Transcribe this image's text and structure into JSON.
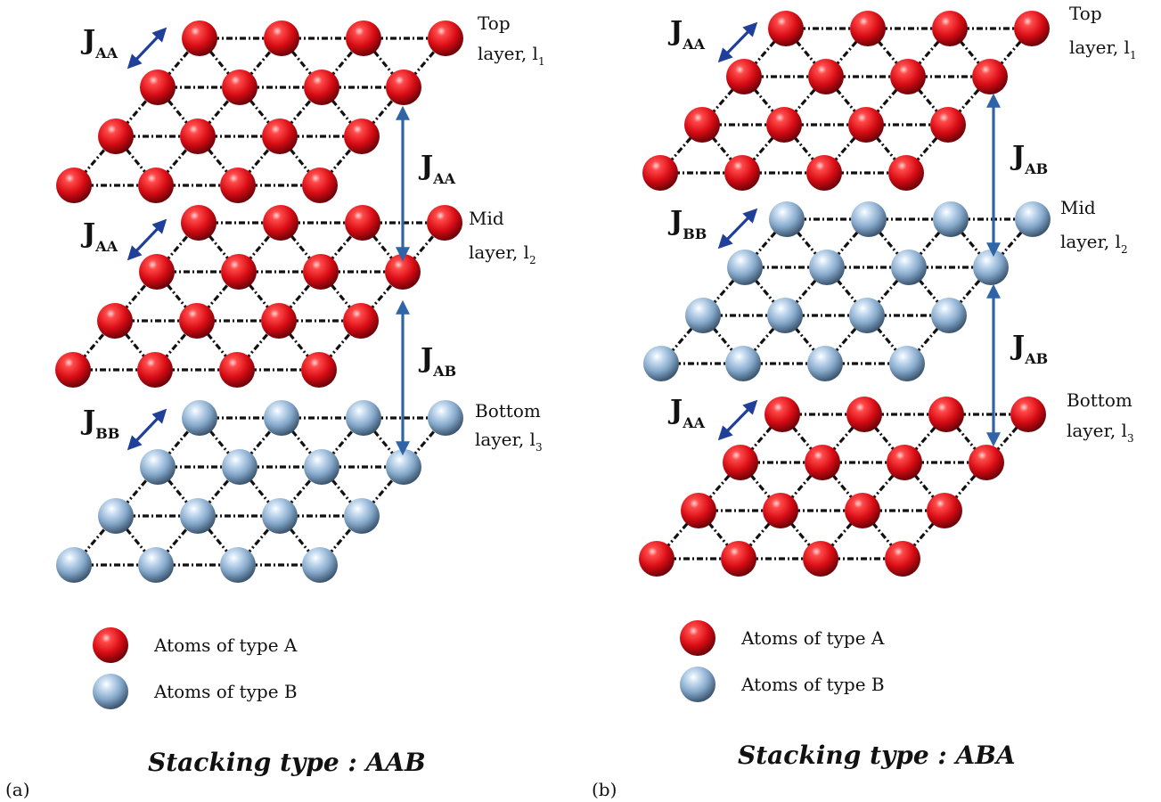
{
  "colors": {
    "atom_A": "#e0141c",
    "atom_B": "#8fb4d8",
    "vertical_arrow": "#2f64a8",
    "inplane_arrow": "#1f3f99"
  },
  "panels": [
    {
      "tag": "(a)",
      "title": "Stacking type : AAB",
      "layers": [
        {
          "type": "A",
          "j_main": "J",
          "j_sub": "AA",
          "label_line1": "Top",
          "label_line2": "layer, l",
          "label_sub": "1"
        },
        {
          "type": "A",
          "j_main": "J",
          "j_sub": "AA",
          "label_line1": "Mid",
          "label_line2": "layer, l",
          "label_sub": "2"
        },
        {
          "type": "B",
          "j_main": "J",
          "j_sub": "BB",
          "label_line1": "Bottom",
          "label_line2": "layer, l",
          "label_sub": "3"
        }
      ],
      "interlayer": [
        {
          "j_main": "J",
          "j_sub": "AA"
        },
        {
          "j_main": "J",
          "j_sub": "AB"
        }
      ],
      "legend": [
        {
          "type": "A",
          "text": "Atoms of type A"
        },
        {
          "type": "B",
          "text": "Atoms of type B"
        }
      ]
    },
    {
      "tag": "(b)",
      "title": "Stacking type : ABA",
      "layers": [
        {
          "type": "A",
          "j_main": "J",
          "j_sub": "AA",
          "label_line1": "Top",
          "label_line2": "layer, l",
          "label_sub": "1"
        },
        {
          "type": "B",
          "j_main": "J",
          "j_sub": "BB",
          "label_line1": "Mid",
          "label_line2": "layer, l",
          "label_sub": "2"
        },
        {
          "type": "A",
          "j_main": "J",
          "j_sub": "AA",
          "label_line1": "Bottom",
          "label_line2": "layer, l",
          "label_sub": "3"
        }
      ],
      "interlayer": [
        {
          "j_main": "J",
          "j_sub": "AB"
        },
        {
          "j_main": "J",
          "j_sub": "AB"
        }
      ],
      "legend": [
        {
          "type": "A",
          "text": "Atoms of type A"
        },
        {
          "type": "B",
          "text": "Atoms of type B"
        }
      ]
    }
  ]
}
